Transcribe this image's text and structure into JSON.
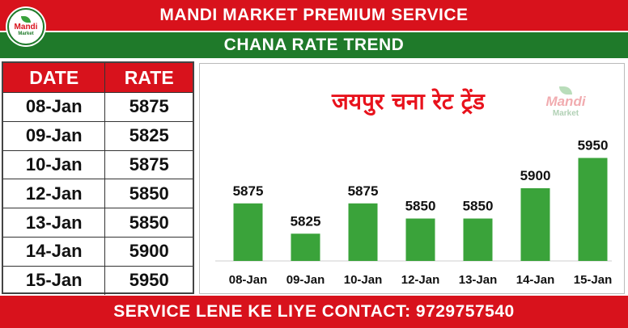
{
  "header": {
    "title": "MANDI MARKET PREMIUM SERVICE"
  },
  "logo": {
    "name": "Mandi",
    "sub": "Market"
  },
  "subheader": {
    "title": "CHANA RATE TREND"
  },
  "table": {
    "headers": [
      "DATE",
      "RATE"
    ],
    "rows": [
      [
        "08-Jan",
        "5875"
      ],
      [
        "09-Jan",
        "5825"
      ],
      [
        "10-Jan",
        "5875"
      ],
      [
        "12-Jan",
        "5850"
      ],
      [
        "13-Jan",
        "5850"
      ],
      [
        "14-Jan",
        "5900"
      ],
      [
        "15-Jan",
        "5950"
      ]
    ]
  },
  "footer": {
    "contact": "SERVICE LENE KE LIYE CONTACT: 9729757540"
  },
  "colors": {
    "red": "#d8121c",
    "green": "#1f7a2a",
    "bar": "#3aa33a"
  },
  "chart_data": {
    "type": "bar",
    "title": "जयपुर चना रेट ट्रेंड",
    "categories": [
      "08-Jan",
      "09-Jan",
      "10-Jan",
      "12-Jan",
      "13-Jan",
      "14-Jan",
      "15-Jan"
    ],
    "values": [
      5875,
      5825,
      5875,
      5850,
      5850,
      5900,
      5950
    ],
    "ylim": [
      5780,
      5960
    ],
    "grid": false,
    "legend": "none",
    "data_labels": true
  }
}
